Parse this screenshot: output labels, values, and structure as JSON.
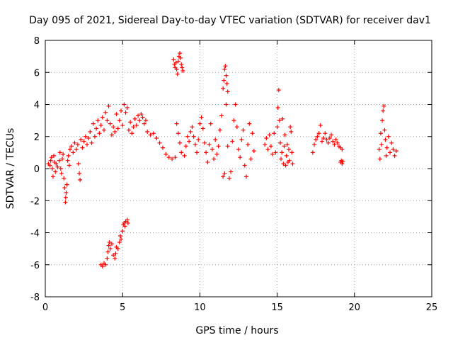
{
  "chart_data": {
    "type": "scatter",
    "title": "Day 095 of 2021, Sidereal Day-to-day VTEC variation (SDTVAR) for receiver dav1",
    "xlabel": "GPS time / hours",
    "ylabel": "SDTVAR / TECUs",
    "xlim": [
      0,
      25
    ],
    "ylim": [
      -8,
      8
    ],
    "xticks": [
      0,
      5,
      10,
      15,
      20,
      25
    ],
    "yticks": [
      -8,
      -6,
      -4,
      -2,
      0,
      2,
      4,
      6,
      8
    ],
    "grid": true,
    "marker": "+",
    "color": "#ff0000",
    "series": [
      {
        "name": "dav1",
        "points": [
          [
            0.2,
            0.3
          ],
          [
            0.3,
            0.2
          ],
          [
            0.35,
            0.5
          ],
          [
            0.4,
            0.7
          ],
          [
            0.45,
            0.0
          ],
          [
            0.5,
            -0.5
          ],
          [
            0.55,
            0.8
          ],
          [
            0.6,
            0.4
          ],
          [
            0.65,
            -0.2
          ],
          [
            0.7,
            0.3
          ],
          [
            0.8,
            0.1
          ],
          [
            0.9,
            0.5
          ],
          [
            0.95,
            1.0
          ],
          [
            1.0,
            0.0
          ],
          [
            1.05,
            -0.3
          ],
          [
            1.1,
            0.6
          ],
          [
            1.15,
            0.9
          ],
          [
            1.2,
            -0.6
          ],
          [
            1.25,
            -1.2
          ],
          [
            1.3,
            -2.1
          ],
          [
            1.32,
            -1.8
          ],
          [
            1.35,
            -1.5
          ],
          [
            1.4,
            -1.0
          ],
          [
            1.45,
            0.5
          ],
          [
            1.5,
            0.8
          ],
          [
            1.55,
            0.2
          ],
          [
            1.6,
            1.2
          ],
          [
            1.7,
            1.4
          ],
          [
            1.8,
            1.0
          ],
          [
            1.9,
            1.6
          ],
          [
            2.0,
            1.2
          ],
          [
            2.1,
            1.5
          ],
          [
            2.15,
            0.3
          ],
          [
            2.2,
            -0.3
          ],
          [
            2.25,
            -0.7
          ],
          [
            2.3,
            1.8
          ],
          [
            2.4,
            1.3
          ],
          [
            2.5,
            1.7
          ],
          [
            2.6,
            2.0
          ],
          [
            2.7,
            1.5
          ],
          [
            2.8,
            1.9
          ],
          [
            2.9,
            2.3
          ],
          [
            3.0,
            1.6
          ],
          [
            3.1,
            2.8
          ],
          [
            3.2,
            2.0
          ],
          [
            3.3,
            2.5
          ],
          [
            3.4,
            3.0
          ],
          [
            3.5,
            2.2
          ],
          [
            3.6,
            2.7
          ],
          [
            3.7,
            3.2
          ],
          [
            3.8,
            2.4
          ],
          [
            3.9,
            3.5
          ],
          [
            4.0,
            3.0
          ],
          [
            4.1,
            3.9
          ],
          [
            4.2,
            2.8
          ],
          [
            4.3,
            2.1
          ],
          [
            4.4,
            2.6
          ],
          [
            4.5,
            2.3
          ],
          [
            4.6,
            3.4
          ],
          [
            4.7,
            2.5
          ],
          [
            4.8,
            3.0
          ],
          [
            4.9,
            3.6
          ],
          [
            5.0,
            2.7
          ],
          [
            5.1,
            4.0
          ],
          [
            5.2,
            3.5
          ],
          [
            5.3,
            3.8
          ],
          [
            5.4,
            2.4
          ],
          [
            5.5,
            2.9
          ],
          [
            5.6,
            2.2
          ],
          [
            5.7,
            2.6
          ],
          [
            5.8,
            3.1
          ],
          [
            5.9,
            2.7
          ],
          [
            6.0,
            3.3
          ],
          [
            6.1,
            3.0
          ],
          [
            6.2,
            3.4
          ],
          [
            6.3,
            3.2
          ],
          [
            6.4,
            2.8
          ],
          [
            6.5,
            3.0
          ],
          [
            6.6,
            2.3
          ],
          [
            6.8,
            2.1
          ],
          [
            7.0,
            2.2
          ],
          [
            7.2,
            1.9
          ],
          [
            7.4,
            1.6
          ],
          [
            7.6,
            1.3
          ],
          [
            7.8,
            0.9
          ],
          [
            8.0,
            0.7
          ],
          [
            8.2,
            0.6
          ],
          [
            8.4,
            0.7
          ],
          [
            8.5,
            2.8
          ],
          [
            8.6,
            2.2
          ],
          [
            8.7,
            1.6
          ],
          [
            8.8,
            1.0
          ],
          [
            9.0,
            0.8
          ],
          [
            9.1,
            1.4
          ],
          [
            9.2,
            2.0
          ],
          [
            9.3,
            1.7
          ],
          [
            9.4,
            2.3
          ],
          [
            9.5,
            2.6
          ],
          [
            9.6,
            2.0
          ],
          [
            9.7,
            1.5
          ],
          [
            9.8,
            1.0
          ],
          [
            9.9,
            1.8
          ],
          [
            10.0,
            2.8
          ],
          [
            10.1,
            3.2
          ],
          [
            10.2,
            2.5
          ],
          [
            10.3,
            1.6
          ],
          [
            10.4,
            1.0
          ],
          [
            10.5,
            0.4
          ],
          [
            10.6,
            1.5
          ],
          [
            10.7,
            2.8
          ],
          [
            10.8,
            1.2
          ],
          [
            10.9,
            0.6
          ],
          [
            11.0,
            1.8
          ],
          [
            11.1,
            0.9
          ],
          [
            11.2,
            1.4
          ],
          [
            11.3,
            2.4
          ],
          [
            11.4,
            3.3
          ],
          [
            11.5,
            -0.5
          ],
          [
            11.6,
            -0.3
          ],
          [
            11.7,
            4.0
          ],
          [
            11.8,
            1.4
          ],
          [
            11.9,
            -0.6
          ],
          [
            12.0,
            -0.2
          ],
          [
            12.1,
            1.7
          ],
          [
            12.2,
            3.0
          ],
          [
            12.3,
            4.0
          ],
          [
            12.4,
            2.6
          ],
          [
            12.5,
            1.2
          ],
          [
            12.6,
            0.7
          ],
          [
            12.7,
            1.8
          ],
          [
            12.8,
            2.4
          ],
          [
            12.9,
            0.2
          ],
          [
            13.0,
            -0.5
          ],
          [
            13.1,
            1.5
          ],
          [
            13.2,
            2.8
          ],
          [
            13.3,
            0.6
          ],
          [
            13.4,
            2.2
          ],
          [
            13.5,
            1.1
          ],
          [
            8.3,
            6.8
          ],
          [
            8.35,
            6.5
          ],
          [
            8.4,
            6.3
          ],
          [
            8.45,
            6.6
          ],
          [
            8.5,
            6.2
          ],
          [
            8.55,
            5.9
          ],
          [
            8.6,
            6.7
          ],
          [
            8.65,
            7.0
          ],
          [
            8.7,
            7.2
          ],
          [
            8.75,
            6.9
          ],
          [
            8.8,
            6.5
          ],
          [
            8.85,
            6.3
          ],
          [
            8.9,
            6.1
          ],
          [
            11.5,
            5.0
          ],
          [
            11.55,
            5.5
          ],
          [
            11.6,
            6.2
          ],
          [
            11.65,
            6.4
          ],
          [
            11.7,
            5.8
          ],
          [
            11.75,
            5.3
          ],
          [
            11.8,
            4.8
          ],
          [
            3.6,
            -6.0
          ],
          [
            3.7,
            -6.1
          ],
          [
            3.8,
            -5.9
          ],
          [
            3.9,
            -6.0
          ],
          [
            4.0,
            -5.6
          ],
          [
            4.05,
            -5.2
          ],
          [
            4.1,
            -4.8
          ],
          [
            4.15,
            -4.6
          ],
          [
            4.2,
            -5.0
          ],
          [
            4.3,
            -4.7
          ],
          [
            4.4,
            -5.4
          ],
          [
            4.5,
            -5.6
          ],
          [
            4.55,
            -5.3
          ],
          [
            4.6,
            -4.9
          ],
          [
            4.7,
            -5.0
          ],
          [
            4.8,
            -4.6
          ],
          [
            4.85,
            -4.2
          ],
          [
            4.9,
            -4.4
          ],
          [
            5.0,
            -3.9
          ],
          [
            5.05,
            -3.5
          ],
          [
            5.1,
            -3.4
          ],
          [
            5.15,
            -3.6
          ],
          [
            5.2,
            -3.3
          ],
          [
            5.3,
            -3.2
          ],
          [
            5.35,
            -3.4
          ],
          [
            14.2,
            1.5
          ],
          [
            14.3,
            1.9
          ],
          [
            14.4,
            1.2
          ],
          [
            14.5,
            2.1
          ],
          [
            14.6,
            1.4
          ],
          [
            14.7,
            0.9
          ],
          [
            14.8,
            2.2
          ],
          [
            14.9,
            1.0
          ],
          [
            15.0,
            2.6
          ],
          [
            15.05,
            3.8
          ],
          [
            15.1,
            4.9
          ],
          [
            15.15,
            3.0
          ],
          [
            15.2,
            1.6
          ],
          [
            15.25,
            0.6
          ],
          [
            15.3,
            1.0
          ],
          [
            15.35,
            3.1
          ],
          [
            15.4,
            0.3
          ],
          [
            15.45,
            1.4
          ],
          [
            15.5,
            2.1
          ],
          [
            15.55,
            0.2
          ],
          [
            15.6,
            0.8
          ],
          [
            15.65,
            1.5
          ],
          [
            15.7,
            0.4
          ],
          [
            15.75,
            1.2
          ],
          [
            15.8,
            0.5
          ],
          [
            15.85,
            2.6
          ],
          [
            15.9,
            2.3
          ],
          [
            15.95,
            1.0
          ],
          [
            16.0,
            0.3
          ],
          [
            17.3,
            1.0
          ],
          [
            17.4,
            1.5
          ],
          [
            17.5,
            1.8
          ],
          [
            17.6,
            2.0
          ],
          [
            17.7,
            2.2
          ],
          [
            17.8,
            2.7
          ],
          [
            17.9,
            1.7
          ],
          [
            18.0,
            1.9
          ],
          [
            18.1,
            2.2
          ],
          [
            18.2,
            1.8
          ],
          [
            18.3,
            1.6
          ],
          [
            18.4,
            1.9
          ],
          [
            18.5,
            2.1
          ],
          [
            18.6,
            1.7
          ],
          [
            18.7,
            1.5
          ],
          [
            18.8,
            1.8
          ],
          [
            18.9,
            1.6
          ],
          [
            19.0,
            1.4
          ],
          [
            19.1,
            1.3
          ],
          [
            19.2,
            1.2
          ],
          [
            19.1,
            0.4
          ],
          [
            19.15,
            0.5
          ],
          [
            19.2,
            0.3
          ],
          [
            19.25,
            0.45
          ],
          [
            21.6,
            1.2
          ],
          [
            21.65,
            0.6
          ],
          [
            21.7,
            2.2
          ],
          [
            21.75,
            1.5
          ],
          [
            21.8,
            3.0
          ],
          [
            21.85,
            3.6
          ],
          [
            21.9,
            3.9
          ],
          [
            21.95,
            2.4
          ],
          [
            22.0,
            1.8
          ],
          [
            22.05,
            0.8
          ],
          [
            22.1,
            1.3
          ],
          [
            22.2,
            2.0
          ],
          [
            22.3,
            1.0
          ],
          [
            22.4,
            1.6
          ],
          [
            22.5,
            1.2
          ],
          [
            22.6,
            0.8
          ],
          [
            22.7,
            1.1
          ]
        ]
      }
    ]
  }
}
